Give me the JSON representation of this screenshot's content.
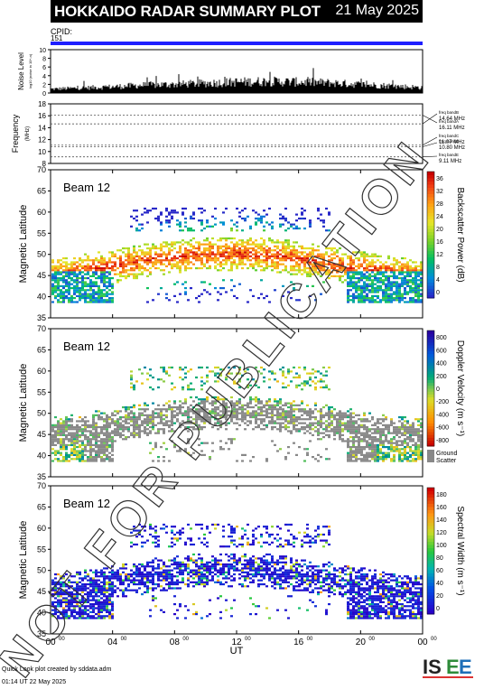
{
  "header": {
    "title": "HOKKAIDO RADAR SUMMARY PLOT",
    "date": "21 May 2025"
  },
  "cpid": {
    "label": "CPID:",
    "value": "151"
  },
  "footer": {
    "line1": "Quick Look plot created by sddata.adm",
    "line2": "01:14 UT 22 May 2025"
  },
  "logo": {
    "text": "ISEE"
  },
  "watermark": "NOT FOR PUBLICATION",
  "x_axis": {
    "label": "UT",
    "ticks": [
      "00",
      "04",
      "08",
      "12",
      "16",
      "20",
      "00"
    ],
    "tick_sup": "00"
  },
  "noise": {
    "ylabel": "Noise Level",
    "ylabel_sub": "log10 (noise in 10^-n)",
    "ticks": [
      "0",
      "2",
      "4",
      "6",
      "8",
      "10"
    ],
    "ylim": [
      0,
      10
    ]
  },
  "frequency": {
    "ylabel": "Frequency",
    "ylabel_sub": "(MHz)",
    "ticks": [
      "8",
      "10",
      "12",
      "14",
      "16",
      "18"
    ],
    "ylim": [
      8,
      18
    ],
    "bands": [
      {
        "name": "freq bandA",
        "value": "16.11 MHz",
        "mhz": 16.11
      },
      {
        "name": "freq bandB",
        "value": "14.64 MHz",
        "mhz": 14.64
      },
      {
        "name": "freq bandC",
        "value": "11.07 MHz",
        "mhz": 11.07
      },
      {
        "name": "freq bandD",
        "value": "10.80 MHz",
        "mhz": 10.8
      },
      {
        "name": "freq bandE",
        "value": "9.11 MHz",
        "mhz": 9.11
      }
    ]
  },
  "panels": [
    {
      "beam": "Beam 12",
      "ylabel": "Magnetic Latitude",
      "yticks": [
        "35",
        "40",
        "45",
        "50",
        "55",
        "60",
        "65",
        "70"
      ],
      "ylim": [
        35,
        70
      ],
      "cbar_label": "Backscatter Power (dB)",
      "cbar_ticks": [
        "0",
        "4",
        "8",
        "12",
        "16",
        "20",
        "24",
        "28",
        "32",
        "36"
      ],
      "palette": "power"
    },
    {
      "beam": "Beam 12",
      "ylabel": "Magnetic Latitude",
      "yticks": [
        "35",
        "40",
        "45",
        "50",
        "55",
        "60",
        "65",
        "70"
      ],
      "ylim": [
        35,
        70
      ],
      "cbar_label": "Doppler Velocity (m s⁻¹)",
      "cbar_ticks": [
        "-800",
        "-600",
        "-400",
        "-200",
        "0",
        "200",
        "400",
        "600",
        "800"
      ],
      "palette": "velocity",
      "ground_scatter": "Ground Scatter"
    },
    {
      "beam": "Beam 12",
      "ylabel": "Magnetic Latitude",
      "yticks": [
        "35",
        "40",
        "45",
        "50",
        "55",
        "60",
        "65",
        "70"
      ],
      "ylim": [
        35,
        70
      ],
      "cbar_label": "Spectral Width (m s⁻¹)",
      "cbar_ticks": [
        "0",
        "20",
        "40",
        "60",
        "80",
        "100",
        "120",
        "140",
        "160",
        "180"
      ],
      "palette": "width"
    }
  ],
  "colors": {
    "header_bg": "#000000",
    "cpid_bar": "#1e1eff",
    "ground_scatter": "#888888"
  },
  "chart_data": [
    {
      "type": "area",
      "title": "Noise Level",
      "xlabel": "UT",
      "ylabel": "Noise Level",
      "ylim": [
        0,
        10
      ],
      "x": [
        0,
        2,
        4,
        6,
        8,
        10,
        12,
        14,
        16,
        18,
        20,
        22,
        24
      ],
      "values": [
        1.0,
        1.3,
        1.6,
        2.0,
        2.2,
        2.5,
        2.8,
        3.0,
        2.8,
        2.6,
        2.2,
        1.8,
        1.4
      ]
    },
    {
      "type": "line",
      "title": "Frequency",
      "ylabel": "Frequency (MHz)",
      "ylim": [
        8,
        18
      ],
      "series": [
        {
          "name": "freq bandA",
          "values": [
            16.11
          ]
        },
        {
          "name": "freq bandB",
          "values": [
            14.64
          ]
        },
        {
          "name": "freq bandC",
          "values": [
            11.07
          ]
        },
        {
          "name": "freq bandD",
          "values": [
            10.8
          ]
        },
        {
          "name": "freq bandE",
          "values": [
            9.11
          ]
        }
      ]
    },
    {
      "type": "heatmap",
      "title": "Backscatter Power (dB)",
      "ylabel": "Magnetic Latitude",
      "xlabel": "UT",
      "ylim": [
        35,
        70
      ],
      "xlim": [
        0,
        24
      ],
      "zlim": [
        0,
        36
      ]
    },
    {
      "type": "heatmap",
      "title": "Doppler Velocity (m s⁻¹)",
      "ylabel": "Magnetic Latitude",
      "xlabel": "UT",
      "ylim": [
        35,
        70
      ],
      "xlim": [
        0,
        24
      ],
      "zlim": [
        -800,
        800
      ]
    },
    {
      "type": "heatmap",
      "title": "Spectral Width (m s⁻¹)",
      "ylabel": "Magnetic Latitude",
      "xlabel": "UT",
      "ylim": [
        35,
        70
      ],
      "xlim": [
        0,
        24
      ],
      "zlim": [
        0,
        180
      ]
    }
  ]
}
